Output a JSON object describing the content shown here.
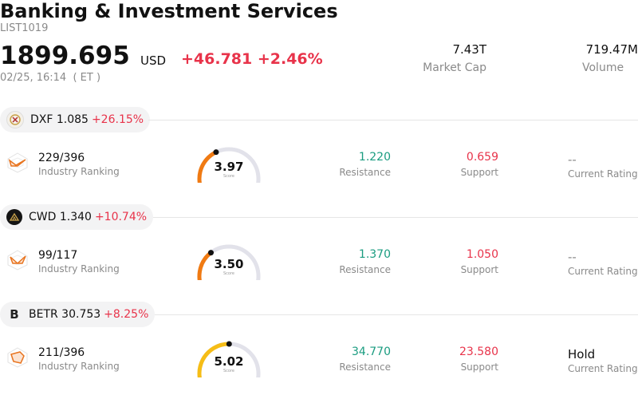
{
  "header": {
    "title": "Banking & Investment Services",
    "code": "LIST1019",
    "price": "1899.695",
    "currency": "USD",
    "change": "+46.781 +2.46%",
    "time": "02/25, 16:14  ( ET )",
    "market_cap_value": "7.43T",
    "market_cap_label": "Market Cap",
    "volume_value": "719.47M",
    "volume_label": "Volume"
  },
  "colors": {
    "up": "#e8334a",
    "green": "#1a9c80",
    "muted": "#8a8a8a"
  },
  "stocks": [
    {
      "ticker": "DXF 1.085",
      "pct": "+26.15%",
      "logo_icon": "dxf-logo-icon",
      "rank": "229/396",
      "rank_label": "Industry Ranking",
      "score": "3.97",
      "score_level": 0.397,
      "score_label": "Score",
      "resistance": "1.220",
      "resistance_label": "Resistance",
      "support": "0.659",
      "support_label": "Support",
      "rating": "--",
      "rating_label": "Current Rating"
    },
    {
      "ticker": "CWD 1.340",
      "pct": "+10.74%",
      "logo_icon": "cwd-logo-icon",
      "rank": "99/117",
      "rank_label": "Industry Ranking",
      "score": "3.50",
      "score_level": 0.35,
      "score_label": "Score",
      "resistance": "1.370",
      "resistance_label": "Resistance",
      "support": "1.050",
      "support_label": "Support",
      "rating": "--",
      "rating_label": "Current Rating"
    },
    {
      "ticker": "BETR 30.753",
      "pct": "+8.25%",
      "logo_icon": "betr-logo-icon",
      "logo_text": "B",
      "rank": "211/396",
      "rank_label": "Industry Ranking",
      "score": "5.02",
      "score_level": 0.502,
      "score_label": "Score",
      "resistance": "34.770",
      "resistance_label": "Resistance",
      "support": "23.580",
      "support_label": "Support",
      "rating": "Hold",
      "rating_label": "Current Rating"
    }
  ]
}
